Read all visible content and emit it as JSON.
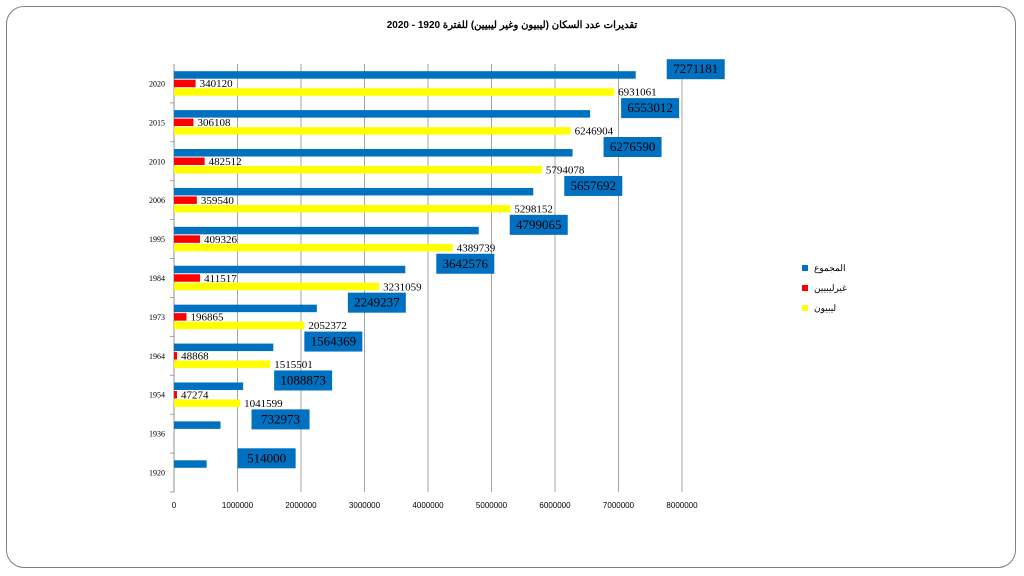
{
  "colors": {
    "total": "#0070c0",
    "non_libyans": "#ff0000",
    "libyans": "#ffff00"
  },
  "chart_data": {
    "type": "bar",
    "orientation": "horizontal",
    "title": "تقديرات عدد السكان (ليبيون وغير ليبيين) للفترة 1920 - 2020",
    "categories": [
      "1920",
      "1936",
      "1954",
      "1964",
      "1973",
      "1984",
      "1995",
      "2006",
      "2010",
      "2015",
      "2020"
    ],
    "series": [
      {
        "name": "المجموع",
        "values": [
          514000,
          732973,
          1088873,
          1564369,
          2249237,
          3642576,
          4799065,
          5657692,
          6276590,
          6553012,
          7271181
        ]
      },
      {
        "name": "غيرليبيين",
        "values": [
          null,
          null,
          47274,
          48868,
          196865,
          411517,
          409326,
          359540,
          482512,
          306108,
          340120
        ]
      },
      {
        "name": "ليبيون",
        "values": [
          null,
          null,
          1041599,
          1515501,
          2052372,
          3231059,
          4389739,
          5298152,
          5794078,
          6246904,
          6931061
        ]
      }
    ],
    "x_ticks": [
      "0",
      "1000000",
      "2000000",
      "3000000",
      "4000000",
      "5000000",
      "6000000",
      "7000000",
      "8000000"
    ],
    "xlim": [
      0,
      8000000
    ],
    "grid": true,
    "legend": "right"
  }
}
